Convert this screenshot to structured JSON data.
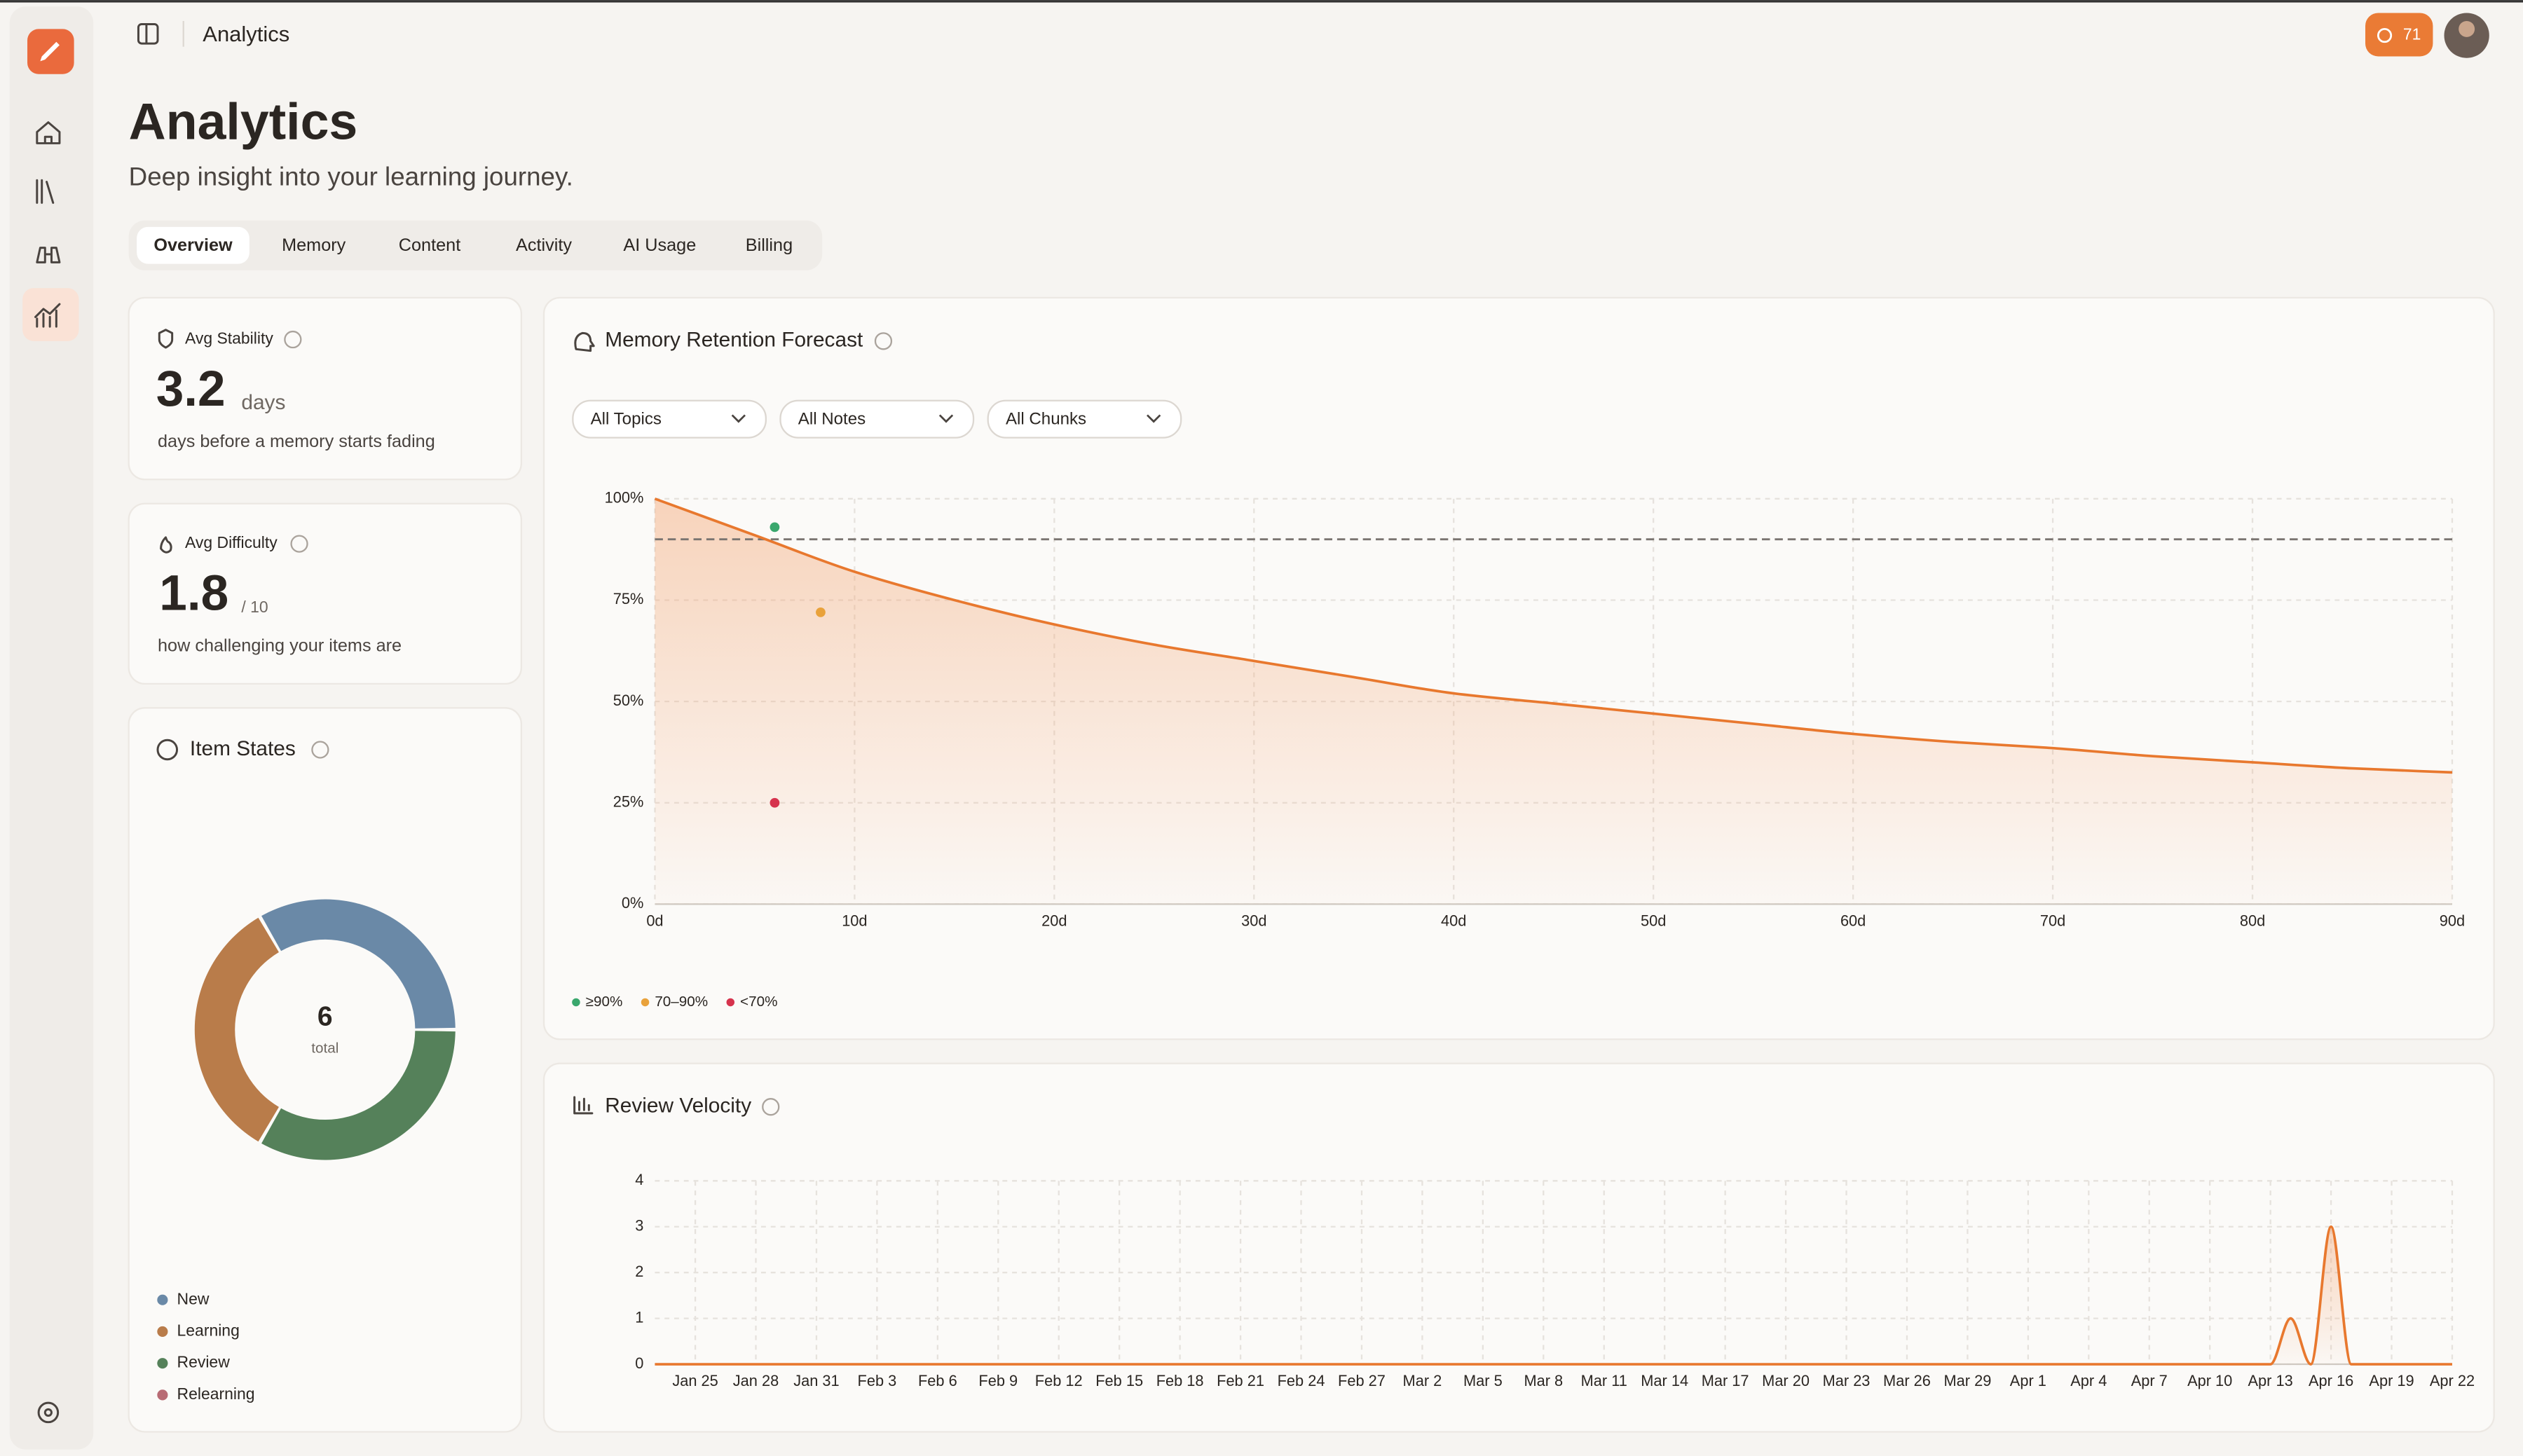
{
  "header": {
    "title": "Analytics",
    "badge": "71"
  },
  "page": {
    "title": "Analytics",
    "subtitle": "Deep insight into your learning journey."
  },
  "tabs": [
    "Overview",
    "Memory",
    "Content",
    "Activity",
    "AI Usage",
    "Billing"
  ],
  "stats": [
    {
      "label": "Avg Stability",
      "value": "3.2",
      "unit": "days",
      "description": "days before a memory starts fading"
    },
    {
      "label": "Avg Difficulty",
      "value": "1.8",
      "unit": "/ 10",
      "description": "how challenging your items are"
    }
  ],
  "chart_data": [
    {
      "type": "pie",
      "title": "Item States",
      "categories": [
        "New",
        "Learning",
        "Review",
        "Relearning"
      ],
      "values": [
        2,
        2,
        2,
        0
      ],
      "colors": [
        "#6a89a7",
        "#b97c4a",
        "#55815a",
        "#b86b74"
      ],
      "center_value": 6,
      "center_label": "total"
    },
    {
      "type": "line",
      "title": "Memory Retention Forecast",
      "filters": [
        "All Topics",
        "All Notes",
        "All Chunks"
      ],
      "x": [
        0,
        5,
        10,
        15,
        20,
        25,
        30,
        35,
        40,
        45,
        50,
        55,
        60,
        65,
        70,
        75,
        80,
        85,
        90
      ],
      "values": [
        100,
        91,
        82,
        75,
        69,
        64,
        60,
        56,
        52,
        49.5,
        47,
        44.5,
        42,
        40,
        38.5,
        36.5,
        35,
        33.5,
        32.5
      ],
      "color": "#e8782e",
      "threshold": 90,
      "series": [
        {
          "name": "≥90%",
          "color": "#3aa76d",
          "x": [
            6
          ],
          "values": [
            93
          ]
        },
        {
          "name": "70–90%",
          "color": "#e9a23b",
          "x": [
            8.3
          ],
          "values": [
            72
          ]
        },
        {
          "name": "<70%",
          "color": "#d6334d",
          "x": [
            6
          ],
          "values": [
            25
          ]
        }
      ],
      "xlim": [
        0,
        90
      ],
      "ylim": [
        0,
        100
      ],
      "xticks": [
        {
          "value": 0,
          "label": "0d"
        },
        {
          "value": 10,
          "label": "10d"
        },
        {
          "value": 20,
          "label": "20d"
        },
        {
          "value": 30,
          "label": "30d"
        },
        {
          "value": 40,
          "label": "40d"
        },
        {
          "value": 50,
          "label": "50d"
        },
        {
          "value": 60,
          "label": "60d"
        },
        {
          "value": 70,
          "label": "70d"
        },
        {
          "value": 80,
          "label": "80d"
        },
        {
          "value": 90,
          "label": "90d"
        }
      ],
      "yticks": [
        {
          "value": 0,
          "label": "0%"
        },
        {
          "value": 25,
          "label": "25%"
        },
        {
          "value": 50,
          "label": "50%"
        },
        {
          "value": 75,
          "label": "75%"
        },
        {
          "value": 100,
          "label": "100%"
        }
      ],
      "grid": true
    },
    {
      "type": "line",
      "title": "Review Velocity",
      "categories": [
        null,
        null,
        "Jan 25",
        null,
        null,
        "Jan 28",
        null,
        null,
        "Jan 31",
        null,
        null,
        "Feb 3",
        null,
        null,
        "Feb 6",
        null,
        null,
        "Feb 9",
        null,
        null,
        "Feb 12",
        null,
        null,
        "Feb 15",
        null,
        null,
        "Feb 18",
        null,
        null,
        "Feb 21",
        null,
        null,
        "Feb 24",
        null,
        null,
        "Feb 27",
        null,
        null,
        "Mar 2",
        null,
        null,
        "Mar 5",
        null,
        null,
        "Mar 8",
        null,
        null,
        "Mar 11",
        null,
        null,
        "Mar 14",
        null,
        null,
        "Mar 17",
        null,
        null,
        "Mar 20",
        null,
        null,
        "Mar 23",
        null,
        null,
        "Mar 26",
        null,
        null,
        "Mar 29",
        null,
        null,
        "Apr 1",
        null,
        null,
        "Apr 4",
        null,
        null,
        "Apr 7",
        null,
        null,
        "Apr 10",
        null,
        null,
        "Apr 13",
        null,
        null,
        "Apr 16",
        null,
        null,
        "Apr 19",
        null,
        null,
        "Apr 22"
      ],
      "values": [
        0,
        0,
        0,
        0,
        0,
        0,
        0,
        0,
        0,
        0,
        0,
        0,
        0,
        0,
        0,
        0,
        0,
        0,
        0,
        0,
        0,
        0,
        0,
        0,
        0,
        0,
        0,
        0,
        0,
        0,
        0,
        0,
        0,
        0,
        0,
        0,
        0,
        0,
        0,
        0,
        0,
        0,
        0,
        0,
        0,
        0,
        0,
        0,
        0,
        0,
        0,
        0,
        0,
        0,
        0,
        0,
        0,
        0,
        0,
        0,
        0,
        0,
        0,
        0,
        0,
        0,
        0,
        0,
        0,
        0,
        0,
        0,
        0,
        0,
        0,
        0,
        0,
        0,
        0,
        0,
        0,
        1,
        0,
        3,
        0,
        0,
        0,
        0,
        0,
        0
      ],
      "color": "#e8782e",
      "ylim": [
        0,
        4
      ],
      "yticks": [
        0,
        1,
        2,
        3,
        4
      ],
      "grid": true
    }
  ]
}
